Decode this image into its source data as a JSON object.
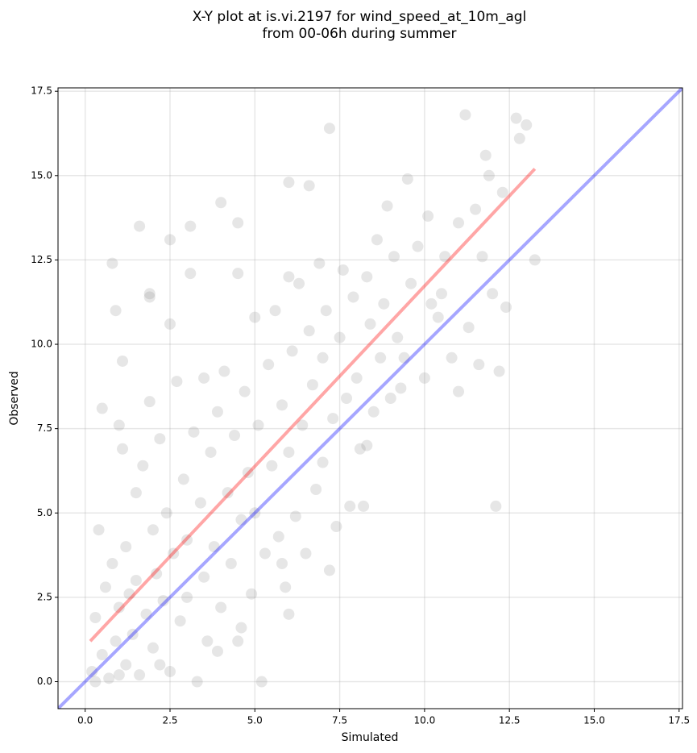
{
  "chart_data": {
    "type": "scatter",
    "title": [
      "X-Y plot at is.vi.2197 for wind_speed_at_10m_agl",
      "from 00-06h during summer"
    ],
    "x_label": "Simulated",
    "y_label": "Observed",
    "xlim": [
      -0.8,
      17.6
    ],
    "ylim": [
      -0.8,
      17.6
    ],
    "xticks": [
      {
        "value": 0,
        "label": "0.0"
      },
      2.5,
      {
        "value": 5,
        "label": "5.0"
      },
      7.5,
      {
        "value": 10,
        "label": "10.0"
      },
      12.5,
      {
        "value": 15,
        "label": "15.0"
      },
      17.5
    ],
    "yticks": [
      {
        "value": 0,
        "label": "0.0"
      },
      2.5,
      {
        "value": 5,
        "label": "5.0"
      },
      7.5,
      {
        "value": 10,
        "label": "10.0"
      },
      12.5,
      {
        "value": 15,
        "label": "15.0"
      },
      17.5
    ],
    "grid": true,
    "color": "#808080",
    "alpha": 0.2,
    "x": [
      0.2,
      0.3,
      0.4,
      0.5,
      0.6,
      0.7,
      0.8,
      0.9,
      1.0,
      1.0,
      1.1,
      1.2,
      1.2,
      1.3,
      1.4,
      1.5,
      1.5,
      1.6,
      1.7,
      1.8,
      1.9,
      1.9,
      2.0,
      2.0,
      2.1,
      2.2,
      2.3,
      2.4,
      2.5,
      2.5,
      2.6,
      2.7,
      2.8,
      2.9,
      3.0,
      3.0,
      3.1,
      3.2,
      3.3,
      3.4,
      3.5,
      3.5,
      3.6,
      3.7,
      3.8,
      3.9,
      4.0,
      4.1,
      4.2,
      4.3,
      4.4,
      4.5,
      4.5,
      4.6,
      4.7,
      4.8,
      4.9,
      5.0,
      5.0,
      5.1,
      5.2,
      5.3,
      5.4,
      5.5,
      5.6,
      5.7,
      5.8,
      5.9,
      6.0,
      6.0,
      6.1,
      6.2,
      6.3,
      6.4,
      6.5,
      6.6,
      6.7,
      6.8,
      6.9,
      7.0,
      7.0,
      7.1,
      7.2,
      7.3,
      7.4,
      7.5,
      7.6,
      7.7,
      7.8,
      7.9,
      8.0,
      8.1,
      8.2,
      8.3,
      8.4,
      8.5,
      8.6,
      8.7,
      8.8,
      8.9,
      9.0,
      9.1,
      9.2,
      9.4,
      9.5,
      9.6,
      9.8,
      10.0,
      10.1,
      10.2,
      10.4,
      10.6,
      10.8,
      11.0,
      11.0,
      11.2,
      11.3,
      11.5,
      11.6,
      11.7,
      11.8,
      11.9,
      12.0,
      12.1,
      12.2,
      12.3,
      12.4,
      12.7,
      12.8,
      13.0,
      13.25,
      0.8,
      0.9,
      1.6,
      2.5,
      3.1,
      4.0,
      4.5,
      6.0,
      6.6,
      0.5,
      1.1,
      1.9,
      7.2,
      6.0,
      3.9,
      4.6,
      5.8,
      2.2,
      8.3,
      9.3,
      10.5,
      0.3,
      1.0
    ],
    "values": [
      0.3,
      1.9,
      4.5,
      0.8,
      2.8,
      0.1,
      3.5,
      1.2,
      7.6,
      2.2,
      6.9,
      0.5,
      4.0,
      2.6,
      1.4,
      5.6,
      3.0,
      0.2,
      6.4,
      2.0,
      8.3,
      11.4,
      4.5,
      1.0,
      3.2,
      7.2,
      2.4,
      5.0,
      0.3,
      10.6,
      3.8,
      8.9,
      1.8,
      6.0,
      4.2,
      2.5,
      12.1,
      7.4,
      0.0,
      5.3,
      9.0,
      3.1,
      1.2,
      6.8,
      4.0,
      8.0,
      2.2,
      9.2,
      5.6,
      3.5,
      7.3,
      12.1,
      1.2,
      4.8,
      8.6,
      6.2,
      2.6,
      10.8,
      5.0,
      7.6,
      0.0,
      3.8,
      9.4,
      6.4,
      11.0,
      4.3,
      8.2,
      2.8,
      12.0,
      6.8,
      9.8,
      4.9,
      11.8,
      7.6,
      3.8,
      10.4,
      8.8,
      5.7,
      12.4,
      9.6,
      6.5,
      11.0,
      16.4,
      7.8,
      4.6,
      10.2,
      12.2,
      8.4,
      5.2,
      11.4,
      9.0,
      6.9,
      5.2,
      12.0,
      10.6,
      8.0,
      13.1,
      9.6,
      11.2,
      14.1,
      8.4,
      12.6,
      10.2,
      9.6,
      14.9,
      11.8,
      12.9,
      9.0,
      13.8,
      11.2,
      10.8,
      12.6,
      9.6,
      13.6,
      8.6,
      16.8,
      10.5,
      14.0,
      9.4,
      12.6,
      15.6,
      15.0,
      11.5,
      5.2,
      9.2,
      14.5,
      11.1,
      16.7,
      16.1,
      16.5,
      12.5,
      12.4,
      11.0,
      13.5,
      13.1,
      13.5,
      14.2,
      13.6,
      14.8,
      14.7,
      8.1,
      9.5,
      11.5,
      3.3,
      2.0,
      0.9,
      1.6,
      3.5,
      0.5,
      7.0,
      8.7,
      11.5,
      0.0,
      0.2
    ],
    "lines": [
      {
        "color": "#ff0000",
        "alpha": 0.35,
        "x": [
          0.15,
          13.25
        ],
        "values": [
          1.2,
          15.2
        ]
      },
      {
        "color": "#0000ff",
        "alpha": 0.35,
        "x": [
          -0.8,
          17.6
        ],
        "values": [
          -0.8,
          17.6
        ]
      }
    ]
  }
}
